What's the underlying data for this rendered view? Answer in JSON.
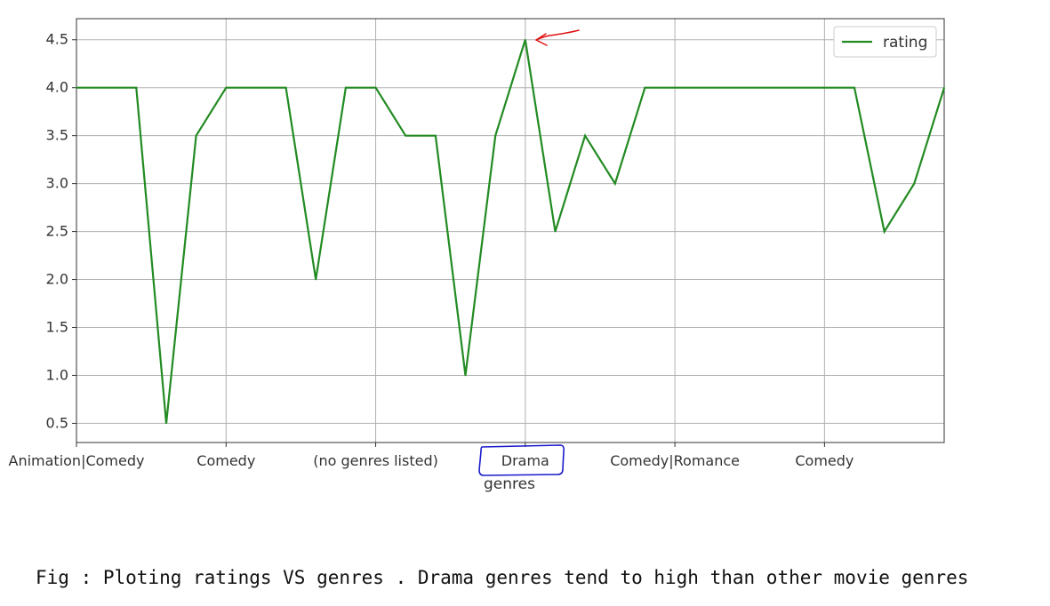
{
  "chart_data": {
    "type": "line",
    "xlabel": "genres",
    "ylabel": "",
    "title": "",
    "ylim": [
      0.3,
      4.72
    ],
    "xlim": [
      0,
      29
    ],
    "yticks": [
      0.5,
      1.0,
      1.5,
      2.0,
      2.5,
      3.0,
      3.5,
      4.0,
      4.5
    ],
    "ytick_labels": [
      "0.5",
      "1.0",
      "1.5",
      "2.0",
      "2.5",
      "3.0",
      "3.5",
      "4.0",
      "4.5"
    ],
    "xticks": [
      {
        "pos": 0,
        "label": "Animation|Comedy"
      },
      {
        "pos": 5,
        "label": "Comedy"
      },
      {
        "pos": 10,
        "label": "(no genres listed)"
      },
      {
        "pos": 15,
        "label": "Drama"
      },
      {
        "pos": 20,
        "label": "Comedy|Romance"
      },
      {
        "pos": 25,
        "label": "Comedy"
      }
    ],
    "grid": true,
    "legend": {
      "position": "top-right",
      "entries": [
        "rating"
      ]
    },
    "series": [
      {
        "name": "rating",
        "color": "#228B22",
        "x": [
          0,
          1,
          2,
          3,
          4,
          5,
          6,
          7,
          8,
          9,
          10,
          11,
          12,
          13,
          14,
          15,
          16,
          17,
          18,
          19,
          20,
          21,
          22,
          23,
          24,
          25,
          26,
          27,
          28,
          29
        ],
        "values": [
          4.0,
          4.0,
          4.0,
          0.5,
          3.5,
          4.0,
          4.0,
          4.0,
          2.0,
          4.0,
          4.0,
          3.5,
          3.5,
          1.0,
          3.5,
          4.5,
          2.5,
          3.5,
          3.0,
          4.0,
          4.0,
          4.0,
          4.0,
          4.0,
          4.0,
          4.0,
          4.0,
          2.5,
          3.0,
          4.0
        ]
      }
    ],
    "annotations": {
      "highlight_label": "Drama",
      "arrow_color": "#e01010",
      "box_color": "#1a1acc"
    }
  },
  "caption": "Fig : Ploting ratings VS genres . Drama genres tend to high than other movie genres"
}
